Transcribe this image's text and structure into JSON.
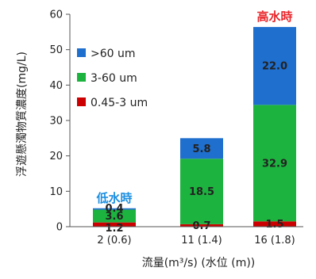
{
  "chart_data": {
    "type": "bar",
    "stacked": true,
    "categories": [
      "2 (0.6)",
      "11 (1.4)",
      "16 (1.8)"
    ],
    "series": [
      {
        "name": "0.45-3 um",
        "color": "#cc0000",
        "values": [
          1.2,
          0.7,
          1.5
        ],
        "labels": [
          "1.2",
          "0.7",
          "1.5"
        ]
      },
      {
        "name": "3-60 um",
        "color": "#1db33f",
        "values": [
          3.6,
          18.5,
          32.9
        ],
        "labels": [
          "3.6",
          "18.5",
          "32.9"
        ]
      },
      {
        "name": ">60 um",
        "color": "#1f6fce",
        "values": [
          0.4,
          5.8,
          22.0
        ],
        "labels": [
          "0.4",
          "5.8",
          "22.0"
        ]
      }
    ],
    "ylim": [
      0,
      60
    ],
    "yticks": [
      0,
      10,
      20,
      30,
      40,
      50,
      60
    ],
    "xlabel": "流量(m³/s) (水位 (m))",
    "ylabel": "浮遊懸濁物質濃度(mg/L)",
    "legend_position": "top-left",
    "annotations": [
      {
        "text": "低水時",
        "category_index": 0,
        "color": "#1b8fe0"
      },
      {
        "text": "高水時",
        "category_index": 2,
        "color": "#e8262b"
      }
    ]
  }
}
